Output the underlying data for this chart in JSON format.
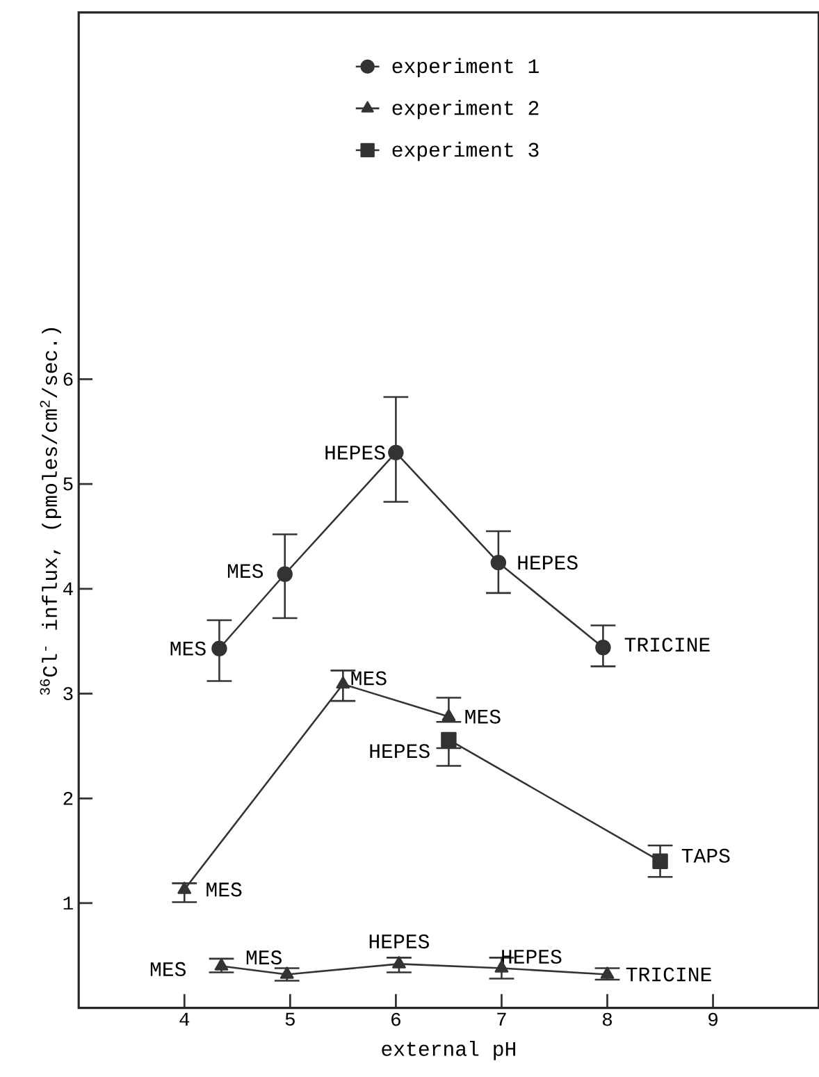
{
  "chart_data": {
    "type": "line",
    "xlabel": "external pH",
    "ylabel": "$^{36}$Cl$^{-}$ influx, (pmoles/cm$^{2}$/sec.)",
    "xlim": [
      3,
      10
    ],
    "ylim": [
      0,
      9.5
    ],
    "xticks": [
      4,
      5,
      6,
      7,
      8,
      9
    ],
    "yticks": [
      1,
      2,
      3,
      4,
      5,
      6
    ],
    "legend": "top",
    "grid": false,
    "line_style": "solid",
    "series": [
      {
        "name": "experiment 1",
        "color": "#333333",
        "marker": "circle",
        "x": [
          4.33,
          4.95,
          6,
          6.97,
          7.96
        ],
        "values": [
          3.43,
          4.14,
          5.3,
          4.25,
          3.44
        ],
        "errors": [
          [
            3.12,
            3.7
          ],
          [
            3.72,
            4.52
          ],
          [
            4.83,
            5.83
          ],
          [
            3.96,
            4.55
          ],
          [
            3.26,
            3.65
          ]
        ]
      },
      {
        "name": "experiment 2",
        "color": "#333333",
        "marker": "triangle",
        "x": [
          4,
          5.5,
          6.5
        ],
        "values": [
          1.13,
          3.09,
          2.78
        ],
        "errors": [
          [
            1.01,
            1.19
          ],
          [
            2.93,
            3.22
          ],
          [
            2.73,
            2.96
          ]
        ]
      },
      {
        "name": "experiment 3",
        "color": "#333333",
        "marker": "square",
        "x": [
          6.5,
          8.5
        ],
        "values": [
          2.56,
          1.4
        ],
        "errors": [
          [
            2.31,
            2.48
          ],
          [
            1.25,
            1.55
          ]
        ]
      },
      {
        "color": "#333333",
        "marker": "triangle",
        "x": [
          4.35,
          4.97,
          6.03,
          7,
          8
        ],
        "values": [
          0.4,
          0.32,
          0.42,
          0.38,
          0.32
        ],
        "errors": [
          [
            0.34,
            0.47
          ],
          [
            0.26,
            0.38
          ],
          [
            0.34,
            0.48
          ],
          [
            0.28,
            0.48
          ],
          [
            0.27,
            0.38
          ]
        ]
      }
    ],
    "annotations": [
      {
        "text": "MES",
        "x": 4.33,
        "y": 3.43
      },
      {
        "text": "MES",
        "x": 4.95,
        "y": 4.14
      },
      {
        "text": "HEPES",
        "x": 6,
        "y": 5.3
      },
      {
        "text": "HEPES",
        "x": 6.97,
        "y": 4.25
      },
      {
        "text": "TRICINE",
        "x": 7.96,
        "y": 3.44
      },
      {
        "text": "MES",
        "x": 4,
        "y": 1.13
      },
      {
        "text": "MES",
        "x": 5.5,
        "y": 3.09
      },
      {
        "text": "MES",
        "x": 6.5,
        "y": 2.78
      },
      {
        "text": "HEPES",
        "x": 6.5,
        "y": 2.56
      },
      {
        "text": "TAPS",
        "x": 8.5,
        "y": 1.4
      },
      {
        "text": "MES",
        "x": 4.35,
        "y": 0.4
      },
      {
        "text": "MES",
        "x": 4.97,
        "y": 0.32
      },
      {
        "text": "HEPES",
        "x": 6.03,
        "y": 0.42
      },
      {
        "text": "HEPES",
        "x": 7,
        "y": 0.38
      },
      {
        "text": "TRICINE",
        "x": 8,
        "y": 0.32
      }
    ]
  }
}
